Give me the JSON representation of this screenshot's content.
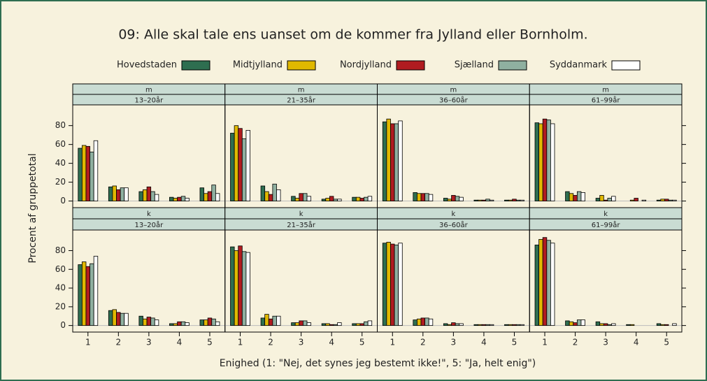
{
  "chart_data": {
    "type": "grouped-bar-panels",
    "title": "09: Alle skal tale ens uanset om de kommer fra Jylland eller Bornholm.",
    "xlabel": "Enighed (1: \"Nej, det synes jeg bestemt ikke!\", 5: \"Ja, helt enig\")",
    "ylabel": "Procent af gruppetotal",
    "series": [
      {
        "name": "Hovedstaden",
        "color": "#2e6e50"
      },
      {
        "name": "Midtjylland",
        "color": "#e0b800"
      },
      {
        "name": "Nordjylland",
        "color": "#b01c20"
      },
      {
        "name": "Sjælland",
        "color": "#8fb0a0"
      },
      {
        "name": "Syddanmark",
        "color": "#ffffff"
      }
    ],
    "categories": [
      "1",
      "2",
      "3",
      "4",
      "5"
    ],
    "ylim": [
      -7,
      102
    ],
    "yticks": [
      0,
      20,
      40,
      60,
      80
    ],
    "panels": [
      {
        "strip1": "m",
        "strip2": "13–20år",
        "values": [
          [
            56,
            15,
            10,
            4,
            14
          ],
          [
            59,
            16,
            12,
            3,
            8
          ],
          [
            58,
            12,
            15,
            4,
            10
          ],
          [
            52,
            14,
            10,
            5,
            17
          ],
          [
            64,
            14,
            7,
            3,
            8
          ]
        ]
      },
      {
        "strip1": "m",
        "strip2": "21–35år",
        "values": [
          [
            72,
            16,
            5,
            2,
            4
          ],
          [
            80,
            10,
            3,
            3,
            4
          ],
          [
            77,
            7,
            8,
            5,
            3
          ],
          [
            66,
            18,
            8,
            2,
            4
          ],
          [
            75,
            12,
            5,
            2,
            5
          ]
        ]
      },
      {
        "strip1": "m",
        "strip2": "36–60år",
        "values": [
          [
            84,
            9,
            3,
            1,
            1
          ],
          [
            87,
            8,
            2,
            1,
            1
          ],
          [
            82,
            8,
            6,
            1,
            2
          ],
          [
            82,
            8,
            5,
            2,
            1
          ],
          [
            85,
            7,
            4,
            1,
            1
          ]
        ]
      },
      {
        "strip1": "m",
        "strip2": "61–99år",
        "values": [
          [
            83,
            10,
            3,
            0,
            1
          ],
          [
            82,
            8,
            6,
            1,
            2
          ],
          [
            87,
            6,
            1,
            3,
            2
          ],
          [
            86,
            10,
            3,
            0,
            1
          ],
          [
            82,
            9,
            5,
            1,
            1
          ]
        ]
      },
      {
        "strip1": "k",
        "strip2": "13–20år",
        "values": [
          [
            65,
            16,
            10,
            2,
            6
          ],
          [
            68,
            17,
            7,
            2,
            6
          ],
          [
            63,
            14,
            9,
            4,
            8
          ],
          [
            66,
            13,
            8,
            4,
            7
          ],
          [
            74,
            13,
            6,
            3,
            4
          ]
        ]
      },
      {
        "strip1": "k",
        "strip2": "21–35år",
        "values": [
          [
            84,
            8,
            3,
            2,
            2
          ],
          [
            80,
            12,
            3,
            2,
            2
          ],
          [
            85,
            7,
            5,
            1,
            2
          ],
          [
            79,
            10,
            5,
            1,
            4
          ],
          [
            78,
            10,
            3,
            3,
            5
          ]
        ]
      },
      {
        "strip1": "k",
        "strip2": "36–60år",
        "values": [
          [
            88,
            6,
            2,
            1,
            1
          ],
          [
            89,
            7,
            1,
            1,
            1
          ],
          [
            87,
            8,
            3,
            1,
            1
          ],
          [
            86,
            8,
            2,
            1,
            1
          ],
          [
            88,
            7,
            2,
            1,
            1
          ]
        ]
      },
      {
        "strip1": "k",
        "strip2": "61–99år",
        "values": [
          [
            86,
            5,
            4,
            1,
            2
          ],
          [
            92,
            4,
            2,
            1,
            1
          ],
          [
            94,
            3,
            2,
            0,
            1
          ],
          [
            91,
            6,
            1,
            0,
            0
          ],
          [
            88,
            6,
            2,
            0,
            2
          ]
        ]
      }
    ]
  }
}
